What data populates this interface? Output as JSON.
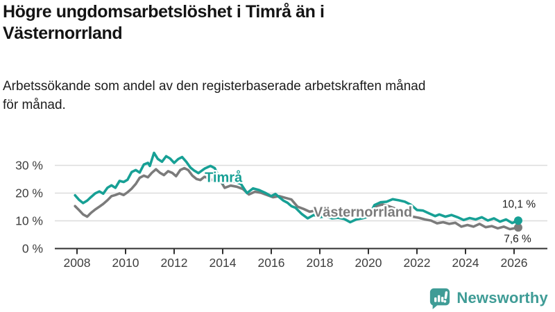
{
  "header": {
    "title": "Högre ungdomsarbetslöshet i Timrå än i\nVästernorrland",
    "subtitle": "Arbetssökande som andel av den registerbaserade arbetskraften månad\nför månad."
  },
  "branding": {
    "name": "Newsworthy",
    "color": "#3F9C96",
    "icon": "bar-chart-speech-bubble-icon"
  },
  "chart_data": {
    "type": "line",
    "unit": "%",
    "grid": true,
    "x_axis": {
      "ticks": [
        "2008",
        "2010",
        "2012",
        "2014",
        "2016",
        "2018",
        "2020",
        "2022",
        "2024",
        "2026"
      ],
      "range": [
        2007.8,
        2026.6
      ]
    },
    "y_axis": {
      "ticks": [
        {
          "value": 0,
          "label": "0 %"
        },
        {
          "value": 10,
          "label": "10 %"
        },
        {
          "value": 20,
          "label": "20 %"
        },
        {
          "value": 30,
          "label": "30 %"
        }
      ],
      "range": [
        0,
        36
      ]
    },
    "series": [
      {
        "name": "Timrå",
        "color": "#17A095",
        "final_value_label": "10,1 %",
        "label_pos": {
          "x_year": 2013.26,
          "y_pct": 24.0
        },
        "end_label_pos": {
          "x_year": 2026.89,
          "y_pct": 14.75
        },
        "points": [
          [
            2007.92,
            19.2
          ],
          [
            2008.08,
            17.6
          ],
          [
            2008.25,
            16.4
          ],
          [
            2008.42,
            17.3
          ],
          [
            2008.58,
            18.6
          ],
          [
            2008.75,
            19.9
          ],
          [
            2008.92,
            20.6
          ],
          [
            2009.08,
            19.8
          ],
          [
            2009.25,
            21.9
          ],
          [
            2009.42,
            22.8
          ],
          [
            2009.58,
            21.9
          ],
          [
            2009.75,
            24.4
          ],
          [
            2009.92,
            24.0
          ],
          [
            2010.08,
            24.8
          ],
          [
            2010.25,
            27.6
          ],
          [
            2010.42,
            28.3
          ],
          [
            2010.58,
            27.4
          ],
          [
            2010.75,
            30.3
          ],
          [
            2010.92,
            30.9
          ],
          [
            2011.0,
            29.8
          ],
          [
            2011.17,
            34.5
          ],
          [
            2011.33,
            32.3
          ],
          [
            2011.5,
            31.3
          ],
          [
            2011.67,
            33.3
          ],
          [
            2011.83,
            32.5
          ],
          [
            2012.0,
            30.9
          ],
          [
            2012.17,
            32.3
          ],
          [
            2012.33,
            33.0
          ],
          [
            2012.5,
            31.3
          ],
          [
            2012.67,
            29.2
          ],
          [
            2012.83,
            28.1
          ],
          [
            2013.0,
            27.2
          ],
          [
            2013.25,
            28.8
          ],
          [
            2013.5,
            29.8
          ],
          [
            2013.67,
            29.0
          ],
          [
            2013.83,
            26.2
          ],
          [
            2014.0,
            23.6
          ],
          [
            2014.25,
            24.7
          ],
          [
            2014.5,
            24.1
          ],
          [
            2014.75,
            23.3
          ],
          [
            2015.0,
            20.0
          ],
          [
            2015.25,
            21.7
          ],
          [
            2015.5,
            21.1
          ],
          [
            2015.75,
            20.1
          ],
          [
            2016.0,
            18.9
          ],
          [
            2016.17,
            19.7
          ],
          [
            2016.33,
            18.5
          ],
          [
            2016.5,
            17.3
          ],
          [
            2016.67,
            16.5
          ],
          [
            2016.83,
            15.3
          ],
          [
            2017.0,
            14.7
          ],
          [
            2017.25,
            12.5
          ],
          [
            2017.5,
            10.9
          ],
          [
            2017.75,
            12.1
          ],
          [
            2018.0,
            11.3
          ],
          [
            2018.25,
            11.7
          ],
          [
            2018.5,
            10.9
          ],
          [
            2018.75,
            11.1
          ],
          [
            2019.0,
            10.7
          ],
          [
            2019.25,
            9.5
          ],
          [
            2019.5,
            10.5
          ],
          [
            2019.75,
            10.9
          ],
          [
            2020.0,
            11.5
          ],
          [
            2020.25,
            15.7
          ],
          [
            2020.5,
            16.7
          ],
          [
            2020.75,
            16.9
          ],
          [
            2021.0,
            17.8
          ],
          [
            2021.25,
            17.4
          ],
          [
            2021.5,
            16.9
          ],
          [
            2021.75,
            15.8
          ],
          [
            2022.0,
            13.9
          ],
          [
            2022.25,
            13.7
          ],
          [
            2022.5,
            12.7
          ],
          [
            2022.75,
            11.7
          ],
          [
            2022.92,
            12.3
          ],
          [
            2023.17,
            11.5
          ],
          [
            2023.42,
            12.1
          ],
          [
            2023.67,
            11.3
          ],
          [
            2023.92,
            10.3
          ],
          [
            2024.17,
            11.0
          ],
          [
            2024.42,
            10.5
          ],
          [
            2024.67,
            11.3
          ],
          [
            2024.92,
            10.1
          ],
          [
            2025.17,
            10.9
          ],
          [
            2025.42,
            9.7
          ],
          [
            2025.67,
            10.5
          ],
          [
            2025.92,
            9.2
          ],
          [
            2026.17,
            10.1
          ]
        ]
      },
      {
        "name": "Västernorrland",
        "color": "#7B7B7B",
        "final_value_label": "7,6 %",
        "label_pos": {
          "x_year": 2017.74,
          "y_pct": 11.5
        },
        "end_label_pos": {
          "x_year": 2026.71,
          "y_pct": 2.25
        },
        "points": [
          [
            2007.92,
            15.3
          ],
          [
            2008.08,
            13.9
          ],
          [
            2008.25,
            12.3
          ],
          [
            2008.42,
            11.5
          ],
          [
            2008.58,
            12.9
          ],
          [
            2008.75,
            14.1
          ],
          [
            2008.92,
            15.1
          ],
          [
            2009.08,
            16.1
          ],
          [
            2009.25,
            17.4
          ],
          [
            2009.42,
            18.9
          ],
          [
            2009.58,
            19.3
          ],
          [
            2009.75,
            19.9
          ],
          [
            2009.92,
            19.3
          ],
          [
            2010.08,
            20.3
          ],
          [
            2010.25,
            21.6
          ],
          [
            2010.42,
            23.3
          ],
          [
            2010.58,
            25.5
          ],
          [
            2010.75,
            26.3
          ],
          [
            2010.92,
            25.7
          ],
          [
            2011.08,
            27.3
          ],
          [
            2011.25,
            28.6
          ],
          [
            2011.42,
            27.3
          ],
          [
            2011.58,
            26.5
          ],
          [
            2011.75,
            27.9
          ],
          [
            2011.92,
            27.3
          ],
          [
            2012.08,
            26.1
          ],
          [
            2012.25,
            28.3
          ],
          [
            2012.42,
            29.0
          ],
          [
            2012.58,
            28.3
          ],
          [
            2012.75,
            26.3
          ],
          [
            2012.92,
            25.1
          ],
          [
            2013.08,
            24.7
          ],
          [
            2013.25,
            25.9
          ],
          [
            2013.42,
            25.3
          ],
          [
            2013.58,
            24.7
          ],
          [
            2013.75,
            25.7
          ],
          [
            2013.92,
            24.3
          ],
          [
            2014.08,
            21.9
          ],
          [
            2014.33,
            22.7
          ],
          [
            2014.58,
            22.3
          ],
          [
            2014.83,
            21.5
          ],
          [
            2015.08,
            19.5
          ],
          [
            2015.33,
            20.5
          ],
          [
            2015.58,
            20.1
          ],
          [
            2015.83,
            19.3
          ],
          [
            2016.08,
            18.5
          ],
          [
            2016.33,
            18.9
          ],
          [
            2016.58,
            18.3
          ],
          [
            2016.83,
            17.7
          ],
          [
            2017.08,
            15.1
          ],
          [
            2017.33,
            14.3
          ],
          [
            2017.58,
            13.3
          ],
          [
            2017.83,
            13.7
          ],
          [
            2018.08,
            12.9
          ],
          [
            2018.33,
            13.1
          ],
          [
            2018.58,
            12.5
          ],
          [
            2018.83,
            12.9
          ],
          [
            2019.08,
            12.3
          ],
          [
            2019.33,
            11.9
          ],
          [
            2019.58,
            12.1
          ],
          [
            2019.83,
            12.5
          ],
          [
            2020.08,
            13.1
          ],
          [
            2020.33,
            15.3
          ],
          [
            2020.58,
            15.9
          ],
          [
            2020.83,
            15.3
          ],
          [
            2021.08,
            14.5
          ],
          [
            2021.33,
            13.7
          ],
          [
            2021.58,
            12.5
          ],
          [
            2021.83,
            11.5
          ],
          [
            2022.08,
            11.1
          ],
          [
            2022.33,
            10.5
          ],
          [
            2022.58,
            10.1
          ],
          [
            2022.83,
            9.1
          ],
          [
            2023.08,
            9.5
          ],
          [
            2023.33,
            8.9
          ],
          [
            2023.58,
            9.3
          ],
          [
            2023.83,
            7.9
          ],
          [
            2024.08,
            8.5
          ],
          [
            2024.33,
            7.9
          ],
          [
            2024.58,
            8.9
          ],
          [
            2024.83,
            7.7
          ],
          [
            2025.08,
            8.1
          ],
          [
            2025.33,
            7.3
          ],
          [
            2025.58,
            7.9
          ],
          [
            2025.83,
            7.0
          ],
          [
            2026.17,
            7.6
          ]
        ]
      }
    ]
  }
}
